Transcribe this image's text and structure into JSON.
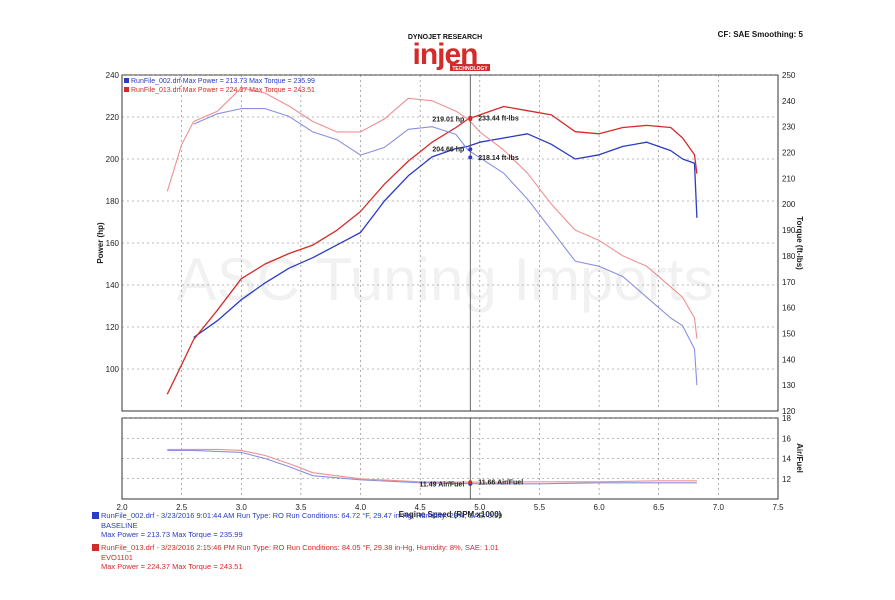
{
  "header": {
    "brand_top": "DYNOJET RESEARCH",
    "brand_main": "injen",
    "brand_sub": "TECHNOLOGY",
    "cf": "CF: SAE  Smoothing: 5"
  },
  "watermark": "ASC Tuning Imports",
  "colors": {
    "baseline": "#2a3bc4",
    "evo": "#d42a2a",
    "baseline_light": "#8a8fe0",
    "evo_light": "#f09090"
  },
  "chart_data": {
    "type": "line",
    "xlabel": "Engine Speed (RPM x1000)",
    "ylabel": "Power (hp)",
    "y2label": "Torque (ft-lbs)",
    "y3label": "Air/Fuel",
    "xlim": [
      2.0,
      7.5
    ],
    "ylim": [
      80,
      240
    ],
    "y2lim": [
      120,
      250
    ],
    "y3lim": [
      10,
      18
    ],
    "x_ticks": [
      "2.0",
      "2.5",
      "3.0",
      "3.5",
      "4.0",
      "4.5",
      "5.0",
      "5.5",
      "6.0",
      "6.5",
      "7.0",
      "7.5"
    ],
    "y_ticks": [
      "100",
      "120",
      "140",
      "160",
      "180",
      "200",
      "220",
      "240"
    ],
    "y2_ticks": [
      "120",
      "130",
      "140",
      "150",
      "160",
      "170",
      "180",
      "190",
      "200",
      "210",
      "220",
      "230",
      "240",
      "250"
    ],
    "y3_ticks": [
      "12",
      "14",
      "16",
      "18"
    ],
    "legend": [
      {
        "text": "RunFile_002.drf Max Power = 213.73    Max Torque = 235.99"
      },
      {
        "text": "RunFile_013.drf Max Power = 224.37    Max Torque = 243.51"
      }
    ],
    "cursor_x": 4.92,
    "annotations": [
      {
        "label": "219.01 hp",
        "x": 4.92,
        "y": 219.01,
        "axis": "power"
      },
      {
        "label": "204.66 hp",
        "x": 4.92,
        "y": 204.66,
        "axis": "power"
      },
      {
        "label": "233.44 ft-lbs",
        "x": 4.92,
        "y": 233.44,
        "axis": "torque"
      },
      {
        "label": "218.14 ft-lbs",
        "x": 4.92,
        "y": 218.14,
        "axis": "torque"
      },
      {
        "label": "11.49 Air/Fuel",
        "x": 4.92,
        "y": 11.49,
        "axis": "afr"
      },
      {
        "label": "11.66 Air/Fuel",
        "x": 4.92,
        "y": 11.66,
        "axis": "afr"
      }
    ],
    "series": [
      {
        "key": "baseline",
        "kind": "power",
        "x": [
          2.6,
          2.8,
          3.0,
          3.2,
          3.4,
          3.6,
          3.8,
          3.9,
          4.0,
          4.2,
          4.4,
          4.6,
          4.8,
          4.9,
          5.0,
          5.2,
          5.4,
          5.6,
          5.8,
          6.0,
          6.2,
          6.4,
          6.6,
          6.7,
          6.8,
          6.82
        ],
        "y": [
          115,
          123,
          133,
          141,
          148,
          153,
          159,
          162,
          165,
          180,
          192,
          201,
          205,
          206,
          208,
          210,
          212,
          207,
          200,
          202,
          206,
          208,
          204,
          200,
          198,
          172
        ]
      },
      {
        "key": "evo",
        "kind": "power",
        "x": [
          2.38,
          2.5,
          2.6,
          2.8,
          3.0,
          3.2,
          3.4,
          3.6,
          3.8,
          4.0,
          4.2,
          4.4,
          4.6,
          4.8,
          4.9,
          5.0,
          5.2,
          5.4,
          5.6,
          5.8,
          6.0,
          6.2,
          6.4,
          6.6,
          6.7,
          6.8,
          6.82
        ],
        "y": [
          88,
          102,
          114,
          128,
          143,
          150,
          155,
          159,
          166,
          175,
          188,
          199,
          208,
          215,
          219,
          221,
          225,
          223,
          221,
          213,
          212,
          215,
          216,
          215,
          210,
          202,
          193
        ]
      },
      {
        "key": "baseline",
        "kind": "torque",
        "x": [
          2.6,
          2.8,
          3.0,
          3.2,
          3.4,
          3.6,
          3.8,
          4.0,
          4.2,
          4.4,
          4.6,
          4.8,
          4.9,
          5.0,
          5.2,
          5.4,
          5.6,
          5.8,
          6.0,
          6.2,
          6.4,
          6.6,
          6.7,
          6.8,
          6.82
        ],
        "y": [
          231,
          235,
          237,
          237,
          234,
          228,
          225,
          219,
          222,
          229,
          230,
          227,
          221,
          218,
          212,
          202,
          190,
          178,
          176,
          172,
          164,
          156,
          153,
          144,
          130
        ]
      },
      {
        "key": "evo",
        "kind": "torque",
        "x": [
          2.38,
          2.5,
          2.6,
          2.8,
          3.0,
          3.2,
          3.4,
          3.6,
          3.8,
          4.0,
          4.2,
          4.4,
          4.6,
          4.8,
          4.9,
          5.0,
          5.2,
          5.4,
          5.6,
          5.8,
          6.0,
          6.2,
          6.4,
          6.6,
          6.7,
          6.8,
          6.82
        ],
        "y": [
          205,
          223,
          232,
          236,
          245,
          243,
          238,
          232,
          228,
          228,
          233,
          241,
          240,
          236,
          233,
          228,
          221,
          212,
          200,
          190,
          186,
          180,
          176,
          168,
          164,
          156,
          148
        ]
      },
      {
        "key": "baseline",
        "kind": "afr",
        "x": [
          2.38,
          2.6,
          2.8,
          3.0,
          3.2,
          3.4,
          3.6,
          4.0,
          4.5,
          5.0,
          5.5,
          6.0,
          6.5,
          6.82
        ],
        "y": [
          14.8,
          14.8,
          14.7,
          14.6,
          14.0,
          13.2,
          12.3,
          11.9,
          11.6,
          11.5,
          11.5,
          11.6,
          11.6,
          11.6
        ]
      },
      {
        "key": "evo",
        "kind": "afr",
        "x": [
          2.38,
          2.6,
          2.8,
          3.0,
          3.2,
          3.4,
          3.6,
          4.0,
          4.5,
          5.0,
          5.5,
          6.0,
          6.5,
          6.82
        ],
        "y": [
          14.9,
          14.9,
          14.9,
          14.8,
          14.3,
          13.5,
          12.6,
          12.0,
          11.7,
          11.66,
          11.7,
          11.7,
          11.8,
          11.8
        ]
      }
    ]
  },
  "footer": {
    "run1": {
      "line1": "RunFile_002.drf - 3/23/2016 9:01:44 AM  Run Type: RO  Run Conditions: 64.72 °F, 29.47 in-Hg,  Humidity: 29%, SAE: 0.99",
      "line2": "BASELINE",
      "line3": "Max Power = 213.73  Max Torque = 235.99"
    },
    "run2": {
      "line1": "RunFile_013.drf - 3/23/2016 2:15:46 PM  Run Type: RO  Run Conditions: 84.05 °F, 29.38 in-Hg,  Humidity:  8%, SAE: 1.01",
      "line2": "EVO1101",
      "line3": "Max Power = 224.37  Max Torque = 243.51"
    }
  }
}
